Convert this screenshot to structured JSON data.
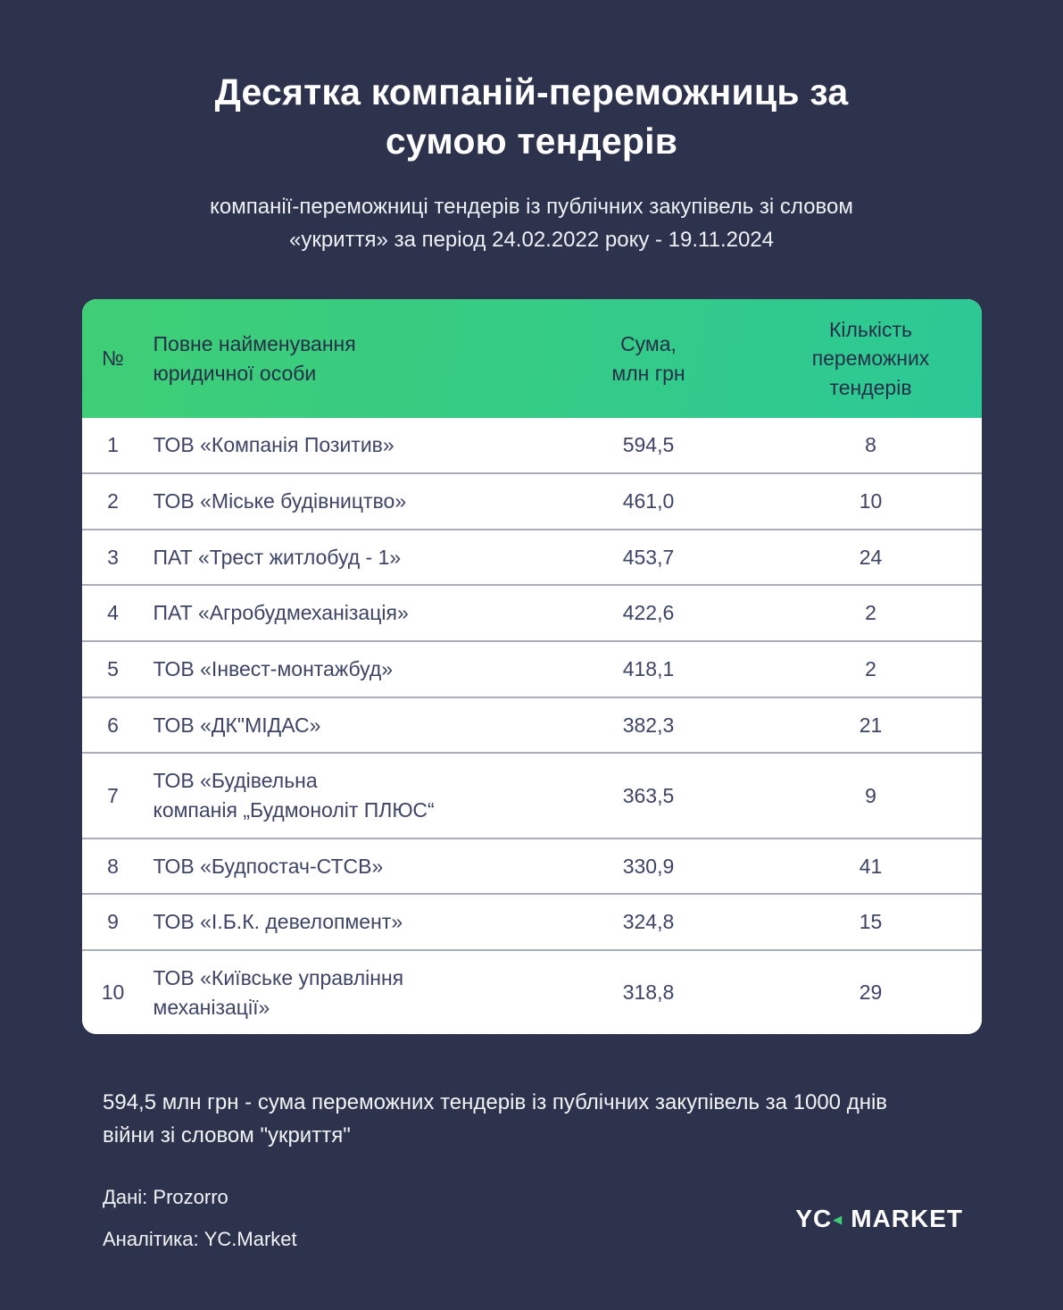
{
  "colors": {
    "background": "#2d334c",
    "header_gradient_start": "#3fce75",
    "header_gradient_end": "#2cc996",
    "card_background": "#ffffff",
    "row_divider": "#a9aebb",
    "row_text": "#3d4465",
    "accent_green": "#3ecd78",
    "text_light": "#f2f3f6"
  },
  "header": {
    "title": "Десятка компаній-переможниць за\nсумою тендерів",
    "subtitle": "компанії-переможниці тендерів із публічних закупівель зі словом\n«укриття» за період 24.02.2022 року - 19.11.2024"
  },
  "table": {
    "columns": [
      "№",
      "Повне найменування\nюридичної особи",
      "Сума,\nмлн грн",
      "Кількість\nпереможних\nтендерів"
    ],
    "rows": [
      {
        "rank": "1",
        "name": "ТОВ «Компанія Позитив»",
        "sum": "594,5",
        "count": "8"
      },
      {
        "rank": "2",
        "name": "ТОВ «Міське будівництво»",
        "sum": "461,0",
        "count": "10"
      },
      {
        "rank": "3",
        "name": "ПАТ «Трест житлобуд - 1»",
        "sum": "453,7",
        "count": "24"
      },
      {
        "rank": "4",
        "name": "ПАТ «Агробудмеханізація»",
        "sum": "422,6",
        "count": "2"
      },
      {
        "rank": "5",
        "name": "ТОВ «Інвест-монтажбуд»",
        "sum": "418,1",
        "count": "2"
      },
      {
        "rank": "6",
        "name": "ТОВ «ДК\"МІДАС»",
        "sum": "382,3",
        "count": "21"
      },
      {
        "rank": "7",
        "name": "ТОВ «Будівельна\nкомпанія „Будмоноліт ПЛЮС“",
        "sum": "363,5",
        "count": "9"
      },
      {
        "rank": "8",
        "name": "ТОВ «Будпостач-СТСВ»",
        "sum": "330,9",
        "count": "41"
      },
      {
        "rank": "9",
        "name": "ТОВ «І.Б.К. девелопмент»",
        "sum": "324,8",
        "count": "15"
      },
      {
        "rank": "10",
        "name": "ТОВ «Київське управління\nмеханізації»",
        "sum": "318,8",
        "count": "29"
      }
    ]
  },
  "chart_data": {
    "type": "table",
    "title": "Десятка компаній-переможниць за сумою тендерів",
    "columns": [
      "№",
      "Повне найменування юридичної особи",
      "Сума, млн грн",
      "Кількість переможних тендерів"
    ],
    "rows": [
      [
        1,
        "ТОВ «Компанія Позитив»",
        594.5,
        8
      ],
      [
        2,
        "ТОВ «Міське будівництво»",
        461.0,
        10
      ],
      [
        3,
        "ПАТ «Трест житлобуд - 1»",
        453.7,
        24
      ],
      [
        4,
        "ПАТ «Агробудмеханізація»",
        422.6,
        2
      ],
      [
        5,
        "ТОВ «Інвест-монтажбуд»",
        418.1,
        2
      ],
      [
        6,
        "ТОВ «ДК\"МІДАС»",
        382.3,
        21
      ],
      [
        7,
        "ТОВ «Будівельна компанія „Будмоноліт ПЛЮС“",
        363.5,
        9
      ],
      [
        8,
        "ТОВ «Будпостач-СТСВ»",
        330.9,
        41
      ],
      [
        9,
        "ТОВ «І.Б.К. девелопмент»",
        324.8,
        15
      ],
      [
        10,
        "ТОВ «Київське управління механізації»",
        318.8,
        29
      ]
    ]
  },
  "footnote": {
    "text": "594,5 млн грн - сума переможних тендерів із публічних закупівель за 1000 днів\nвійни зі словом \"укриття\""
  },
  "credits": {
    "data_source": "Дані: Prozorro",
    "analytics": "Аналітика: YC.Market"
  },
  "logo": {
    "part1": "YC",
    "arrow_icon": "◀",
    "part2": "MARKET"
  }
}
